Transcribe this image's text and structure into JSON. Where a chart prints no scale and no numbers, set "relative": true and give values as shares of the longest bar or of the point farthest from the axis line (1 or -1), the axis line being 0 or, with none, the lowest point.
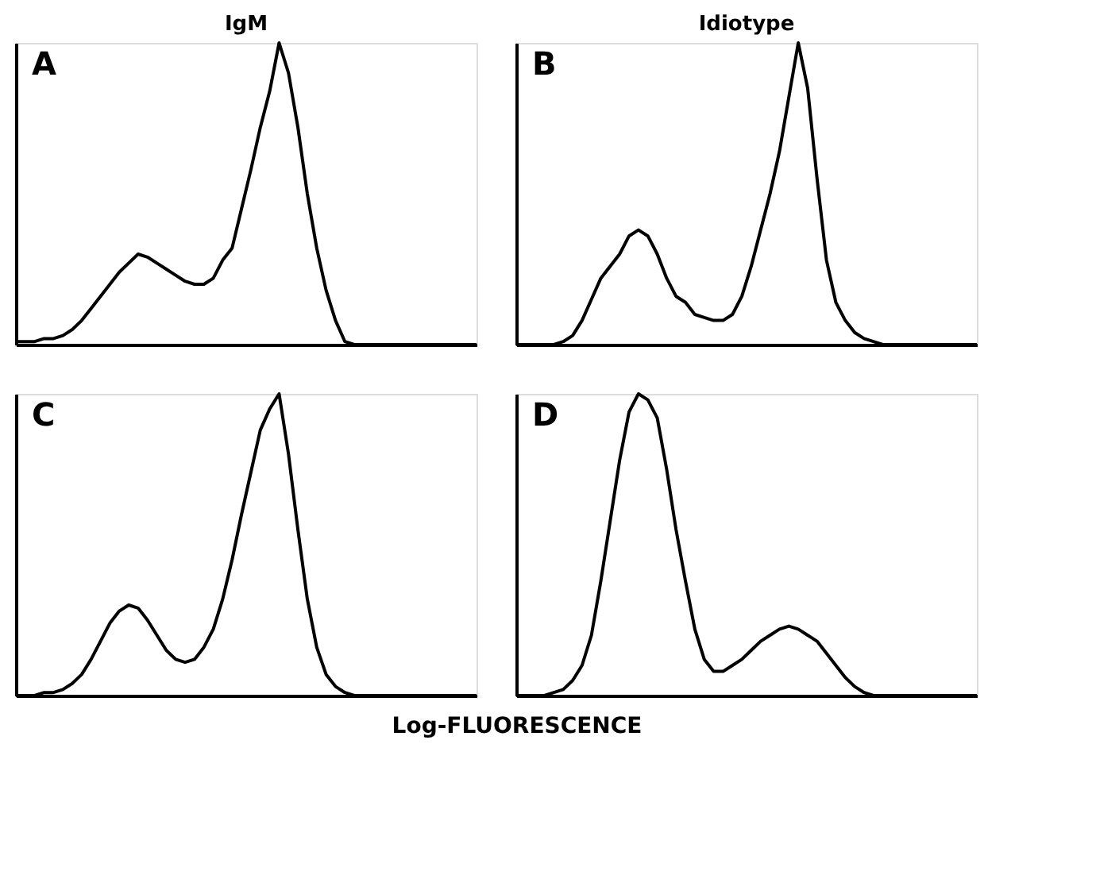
{
  "chart_data": [
    {
      "type": "line",
      "relative": true,
      "title": "IgM",
      "annotations": [
        "A"
      ],
      "color": "#000000",
      "tick_labels": false,
      "categories": [
        null,
        null,
        null,
        null,
        null,
        null,
        null,
        null,
        null,
        null,
        null,
        null,
        null,
        null,
        null,
        null,
        null,
        null,
        null,
        null,
        null,
        null,
        null,
        null,
        null,
        null,
        null,
        null,
        null,
        null,
        null,
        null,
        null,
        null,
        null,
        null,
        null,
        null,
        null,
        null,
        null,
        null,
        null,
        null,
        null,
        null,
        null,
        null,
        null,
        null
      ],
      "values": [
        0.01,
        0.01,
        0.01,
        0.02,
        0.02,
        0.03,
        0.05,
        0.08,
        0.12,
        0.16,
        0.2,
        0.24,
        0.27,
        0.3,
        0.29,
        0.27,
        0.25,
        0.23,
        0.21,
        0.2,
        0.2,
        0.22,
        0.28,
        0.32,
        0.45,
        0.58,
        0.72,
        0.84,
        1.0,
        0.9,
        0.72,
        0.5,
        0.32,
        0.18,
        0.08,
        0.01,
        0,
        0,
        0,
        0,
        0,
        0,
        0,
        0,
        0,
        0,
        0,
        0,
        0,
        0
      ]
    },
    {
      "type": "line",
      "relative": true,
      "title": "Idiotype",
      "annotations": [
        "B"
      ],
      "color": "#000000",
      "tick_labels": false,
      "categories": [
        null,
        null,
        null,
        null,
        null,
        null,
        null,
        null,
        null,
        null,
        null,
        null,
        null,
        null,
        null,
        null,
        null,
        null,
        null,
        null,
        null,
        null,
        null,
        null,
        null,
        null,
        null,
        null,
        null,
        null,
        null,
        null,
        null,
        null,
        null,
        null,
        null,
        null,
        null,
        null,
        null,
        null,
        null,
        null,
        null,
        null,
        null,
        null,
        null,
        null
      ],
      "values": [
        0,
        0,
        0,
        0,
        0,
        0.01,
        0.03,
        0.08,
        0.15,
        0.22,
        0.26,
        0.3,
        0.36,
        0.38,
        0.36,
        0.3,
        0.22,
        0.16,
        0.14,
        0.1,
        0.09,
        0.08,
        0.08,
        0.1,
        0.16,
        0.26,
        0.38,
        0.5,
        0.64,
        0.82,
        1.0,
        0.85,
        0.55,
        0.28,
        0.14,
        0.08,
        0.04,
        0.02,
        0.01,
        0,
        0,
        0,
        0,
        0,
        0,
        0,
        0,
        0,
        0,
        0
      ]
    },
    {
      "type": "line",
      "relative": true,
      "annotations": [
        "C"
      ],
      "xlabel": "Log-FLUORESCENCE",
      "color": "#000000",
      "tick_labels": false,
      "categories": [
        null,
        null,
        null,
        null,
        null,
        null,
        null,
        null,
        null,
        null,
        null,
        null,
        null,
        null,
        null,
        null,
        null,
        null,
        null,
        null,
        null,
        null,
        null,
        null,
        null,
        null,
        null,
        null,
        null,
        null,
        null,
        null,
        null,
        null,
        null,
        null,
        null,
        null,
        null,
        null,
        null,
        null,
        null,
        null,
        null,
        null,
        null,
        null,
        null,
        null
      ],
      "values": [
        0,
        0,
        0,
        0.01,
        0.01,
        0.02,
        0.04,
        0.07,
        0.12,
        0.18,
        0.24,
        0.28,
        0.3,
        0.29,
        0.25,
        0.2,
        0.15,
        0.12,
        0.11,
        0.12,
        0.16,
        0.22,
        0.32,
        0.45,
        0.6,
        0.74,
        0.88,
        0.95,
        1.0,
        0.8,
        0.55,
        0.32,
        0.16,
        0.07,
        0.03,
        0.01,
        0,
        0,
        0,
        0,
        0,
        0,
        0,
        0,
        0,
        0,
        0,
        0,
        0,
        0
      ]
    },
    {
      "type": "line",
      "relative": true,
      "annotations": [
        "D"
      ],
      "color": "#000000",
      "tick_labels": false,
      "categories": [
        null,
        null,
        null,
        null,
        null,
        null,
        null,
        null,
        null,
        null,
        null,
        null,
        null,
        null,
        null,
        null,
        null,
        null,
        null,
        null,
        null,
        null,
        null,
        null,
        null,
        null,
        null,
        null,
        null,
        null,
        null,
        null,
        null,
        null,
        null,
        null,
        null,
        null,
        null,
        null,
        null,
        null,
        null,
        null,
        null,
        null,
        null,
        null,
        null,
        null
      ],
      "values": [
        0,
        0,
        0,
        0,
        0.01,
        0.02,
        0.05,
        0.1,
        0.2,
        0.38,
        0.58,
        0.78,
        0.94,
        1.0,
        0.98,
        0.92,
        0.75,
        0.55,
        0.38,
        0.22,
        0.12,
        0.08,
        0.08,
        0.1,
        0.12,
        0.15,
        0.18,
        0.2,
        0.22,
        0.23,
        0.22,
        0.2,
        0.18,
        0.14,
        0.1,
        0.06,
        0.03,
        0.01,
        0,
        0,
        0,
        0,
        0,
        0,
        0,
        0,
        0,
        0,
        0,
        0
      ]
    }
  ]
}
